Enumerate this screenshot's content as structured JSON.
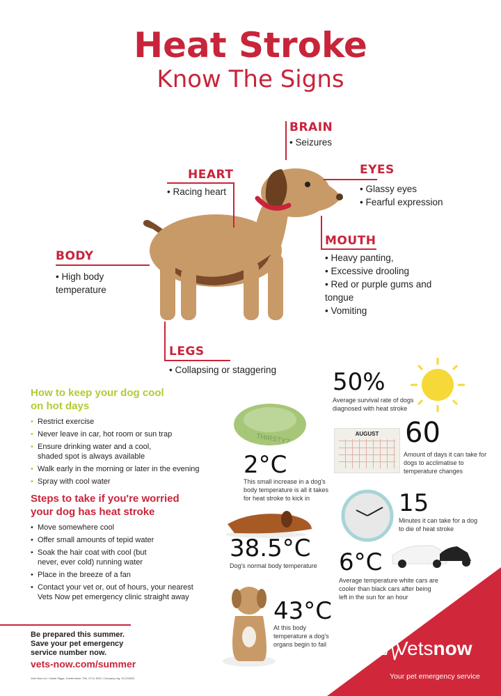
{
  "title": "Heat Stroke",
  "subtitle": "Know The Signs",
  "signs": {
    "brain": {
      "label": "BRAIN",
      "items": [
        "Seizures"
      ]
    },
    "heart": {
      "label": "HEART",
      "items": [
        "Racing heart"
      ]
    },
    "eyes": {
      "label": "EYES",
      "items": [
        "Glassy eyes",
        "Fearful expression"
      ]
    },
    "mouth": {
      "label": "MOUTH",
      "items": [
        "Heavy panting,",
        "Excessive drooling",
        "Red or purple gums and tongue",
        "Vomiting"
      ]
    },
    "body": {
      "label": "BODY",
      "items": [
        "High body temperature"
      ]
    },
    "legs": {
      "label": "LEGS",
      "items": [
        "Collapsing or staggering"
      ]
    }
  },
  "cool": {
    "heading": "How to keep your dog cool on hot days",
    "items": [
      "Restrict exercise",
      "Never leave in car, hot room or sun trap",
      "Ensure drinking water and a cool, shaded spot is always available",
      "Walk early in the morning or later in the evening",
      "Spray with cool water"
    ]
  },
  "steps": {
    "heading": "Steps to take if you're worried your dog has heat stroke",
    "items": [
      "Move somewhere cool",
      "Offer small amounts of tepid water",
      "Soak the hair coat with cool (but never, ever cold) running water",
      "Place in the breeze of a fan",
      "Contact your vet or, out of hours, your nearest Vets Now pet emergency clinic straight away"
    ]
  },
  "stats": {
    "survival": {
      "value": "50%",
      "text": "Average survival rate of dogs diagnosed with heat stroke"
    },
    "acclimatise": {
      "value": "60",
      "text": "Amount of days it can take for dogs to acclimatise to temperature changes",
      "calendar_label": "AUGUST"
    },
    "increase": {
      "value": "2°C",
      "text": "This small increase in a dog's body temperature is all it takes for heat stroke to kick in",
      "bowl_label": "THIRSTY?"
    },
    "minutes": {
      "value": "15",
      "text": "Minutes it can take for a dog to die of heat stroke"
    },
    "normal": {
      "value": "38.5°C",
      "text": "Dog's normal body temperature"
    },
    "cars": {
      "value": "6°C",
      "text": "Average temperature white cars are cooler than black cars after being left in the sun for an hour"
    },
    "organs": {
      "value": "43°C",
      "text": "At this body temperature a dog's organs begin to fail"
    }
  },
  "footer": {
    "line1": "Be prepared this summer.",
    "line2": "Save your pet emergency",
    "line3": "service number now.",
    "url": "vets-now.com/summer",
    "fineprint": "Vets Now Ltd. Castle Riggs, Dunfermline, Fife, KY11 8SG. Company reg: SC216632"
  },
  "brand": {
    "name_a": "Vets",
    "name_b": "now",
    "tagline": "Your pet emergency service"
  },
  "colors": {
    "red": "#c8243a",
    "green": "#b5c935",
    "dog": "#c89a68"
  }
}
